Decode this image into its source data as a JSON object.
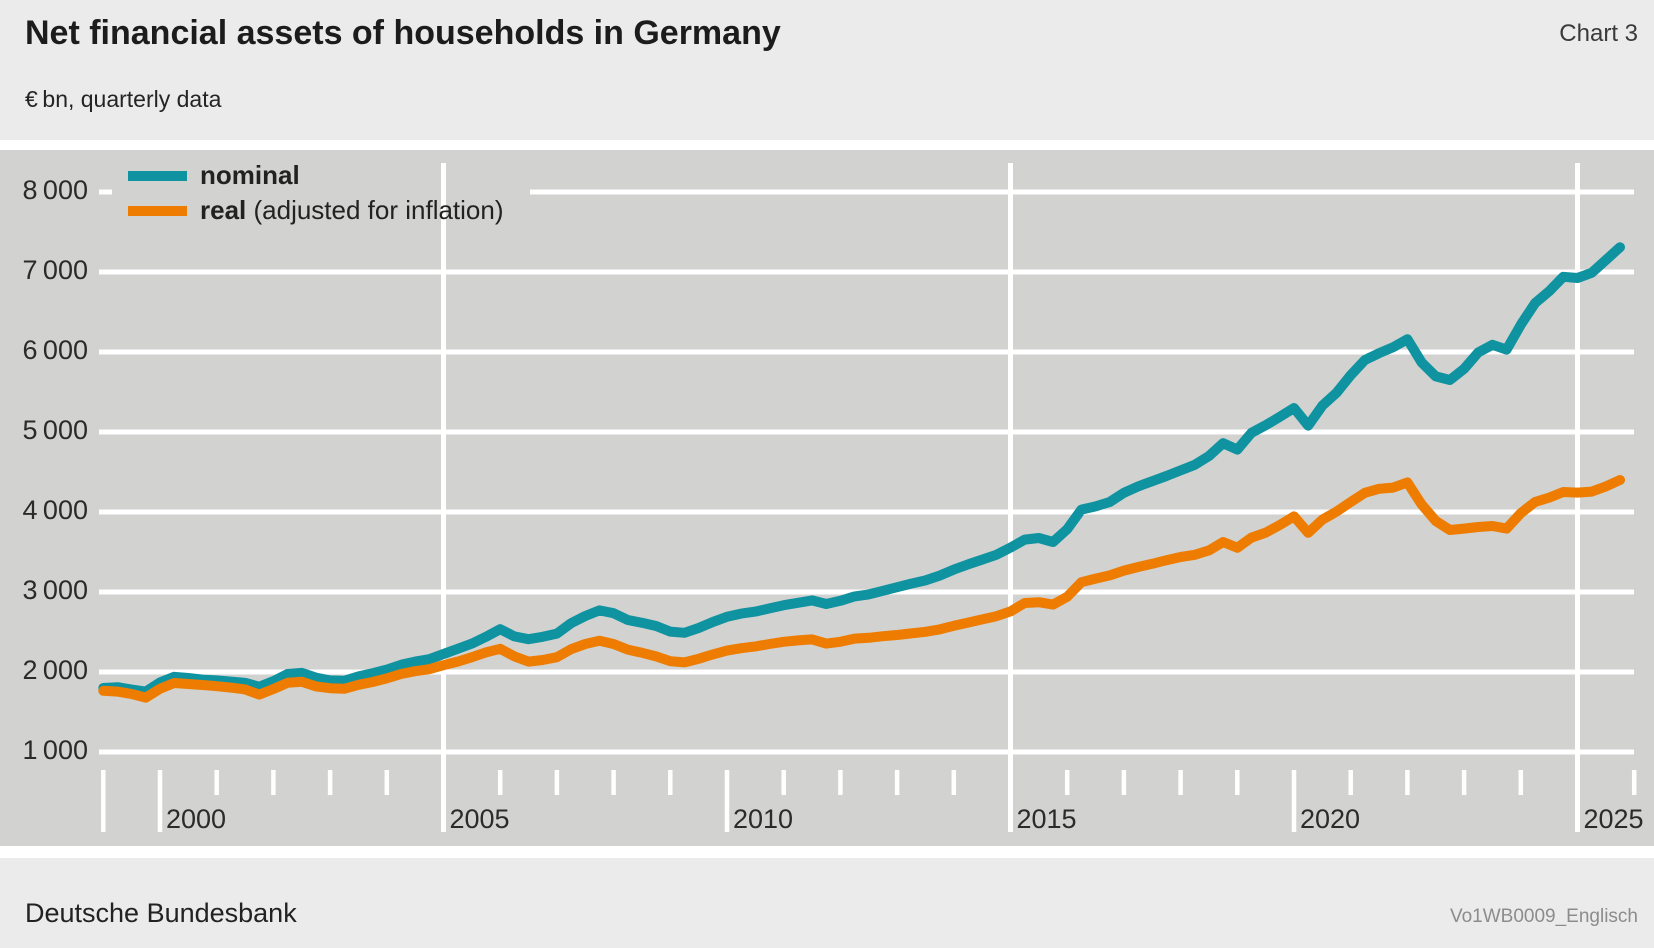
{
  "header": {
    "title": "Net financial assets of households in Germany",
    "chart_label": "Chart 3",
    "subtitle": "€ bn, quarterly data"
  },
  "legend": {
    "items": [
      {
        "label": "nominal",
        "suffix": "",
        "color": "#0f93a0"
      },
      {
        "label": "real",
        "suffix": " (adjusted for inflation)",
        "color": "#ee7c00"
      }
    ]
  },
  "footer": {
    "left": "Deutsche Bundesbank",
    "right": "Vo1WB0009_Englisch"
  },
  "colors": {
    "page_bg": "#ebebeb",
    "plot_bg": "#d2d2d0",
    "gridline": "#ffffff",
    "nominal_line": "#0f93a0",
    "real_line": "#ee7c00"
  },
  "chart_data": {
    "type": "line",
    "title": "Net financial assets of households in Germany",
    "unit": "€ bn",
    "frequency": "quarterly",
    "x_start": 1999.0,
    "x_step": 0.25,
    "x_end": 2025.75,
    "grid": "on",
    "legend_position": "top-left",
    "y_gridlines": [
      1000,
      2000,
      3000,
      4000,
      5000,
      6000,
      7000,
      8000
    ],
    "y_tick_labels": [
      "8 000",
      "7 000",
      "6 000",
      "5 000",
      "4 000",
      "3 000",
      "2 000",
      "1 000"
    ],
    "x_tick_labels": [
      "2000",
      "2005",
      "2010",
      "2015",
      "2020",
      "2025"
    ],
    "x_labeled_years": [
      2000,
      2005,
      2010,
      2015,
      2020,
      2025
    ],
    "x_gridline_years": [
      2005,
      2015,
      2025
    ],
    "x_long_tick_years": [
      1999,
      2000,
      2010,
      2020
    ],
    "x_short_tick_years": [
      2001,
      2002,
      2003,
      2004,
      2006,
      2007,
      2008,
      2009,
      2011,
      2012,
      2013,
      2014,
      2016,
      2017,
      2018,
      2019,
      2021,
      2022,
      2023,
      2024,
      2026
    ],
    "series": [
      {
        "name": "nominal",
        "color": "#0f93a0",
        "values": [
          1800,
          1810,
          1780,
          1755,
          1870,
          1940,
          1925,
          1905,
          1895,
          1880,
          1865,
          1815,
          1885,
          1975,
          1990,
          1930,
          1895,
          1890,
          1945,
          1985,
          2030,
          2090,
          2130,
          2160,
          2225,
          2290,
          2355,
          2440,
          2535,
          2445,
          2410,
          2440,
          2480,
          2610,
          2700,
          2770,
          2735,
          2650,
          2615,
          2575,
          2505,
          2490,
          2550,
          2625,
          2690,
          2730,
          2755,
          2795,
          2835,
          2865,
          2895,
          2850,
          2890,
          2945,
          2970,
          3015,
          3060,
          3105,
          3145,
          3205,
          3280,
          3345,
          3405,
          3465,
          3555,
          3655,
          3675,
          3625,
          3785,
          4030,
          4070,
          4125,
          4240,
          4320,
          4385,
          4450,
          4520,
          4590,
          4700,
          4860,
          4780,
          4990,
          5085,
          5190,
          5300,
          5080,
          5330,
          5490,
          5710,
          5900,
          5985,
          6060,
          6160,
          5870,
          5695,
          5650,
          5790,
          5995,
          6090,
          6030,
          6340,
          6610,
          6760,
          6940,
          6925,
          6990,
          7150,
          7310
        ]
      },
      {
        "name": "real (adjusted for inflation)",
        "color": "#ee7c00",
        "values": [
          1765,
          1755,
          1725,
          1680,
          1790,
          1862,
          1850,
          1838,
          1822,
          1805,
          1782,
          1718,
          1788,
          1865,
          1878,
          1820,
          1798,
          1790,
          1840,
          1875,
          1920,
          1975,
          2010,
          2035,
          2085,
          2130,
          2185,
          2245,
          2290,
          2195,
          2130,
          2150,
          2185,
          2285,
          2350,
          2390,
          2350,
          2280,
          2240,
          2195,
          2135,
          2120,
          2165,
          2220,
          2268,
          2298,
          2320,
          2350,
          2378,
          2395,
          2408,
          2355,
          2378,
          2418,
          2428,
          2448,
          2462,
          2482,
          2502,
          2532,
          2578,
          2618,
          2658,
          2698,
          2758,
          2862,
          2872,
          2842,
          2940,
          3122,
          3168,
          3208,
          3268,
          3312,
          3352,
          3398,
          3438,
          3465,
          3520,
          3625,
          3552,
          3680,
          3742,
          3838,
          3945,
          3740,
          3905,
          4005,
          4125,
          4240,
          4290,
          4305,
          4370,
          4095,
          3888,
          3775,
          3792,
          3812,
          3825,
          3792,
          3985,
          4125,
          4180,
          4250,
          4242,
          4255,
          4320,
          4400
        ]
      }
    ]
  }
}
